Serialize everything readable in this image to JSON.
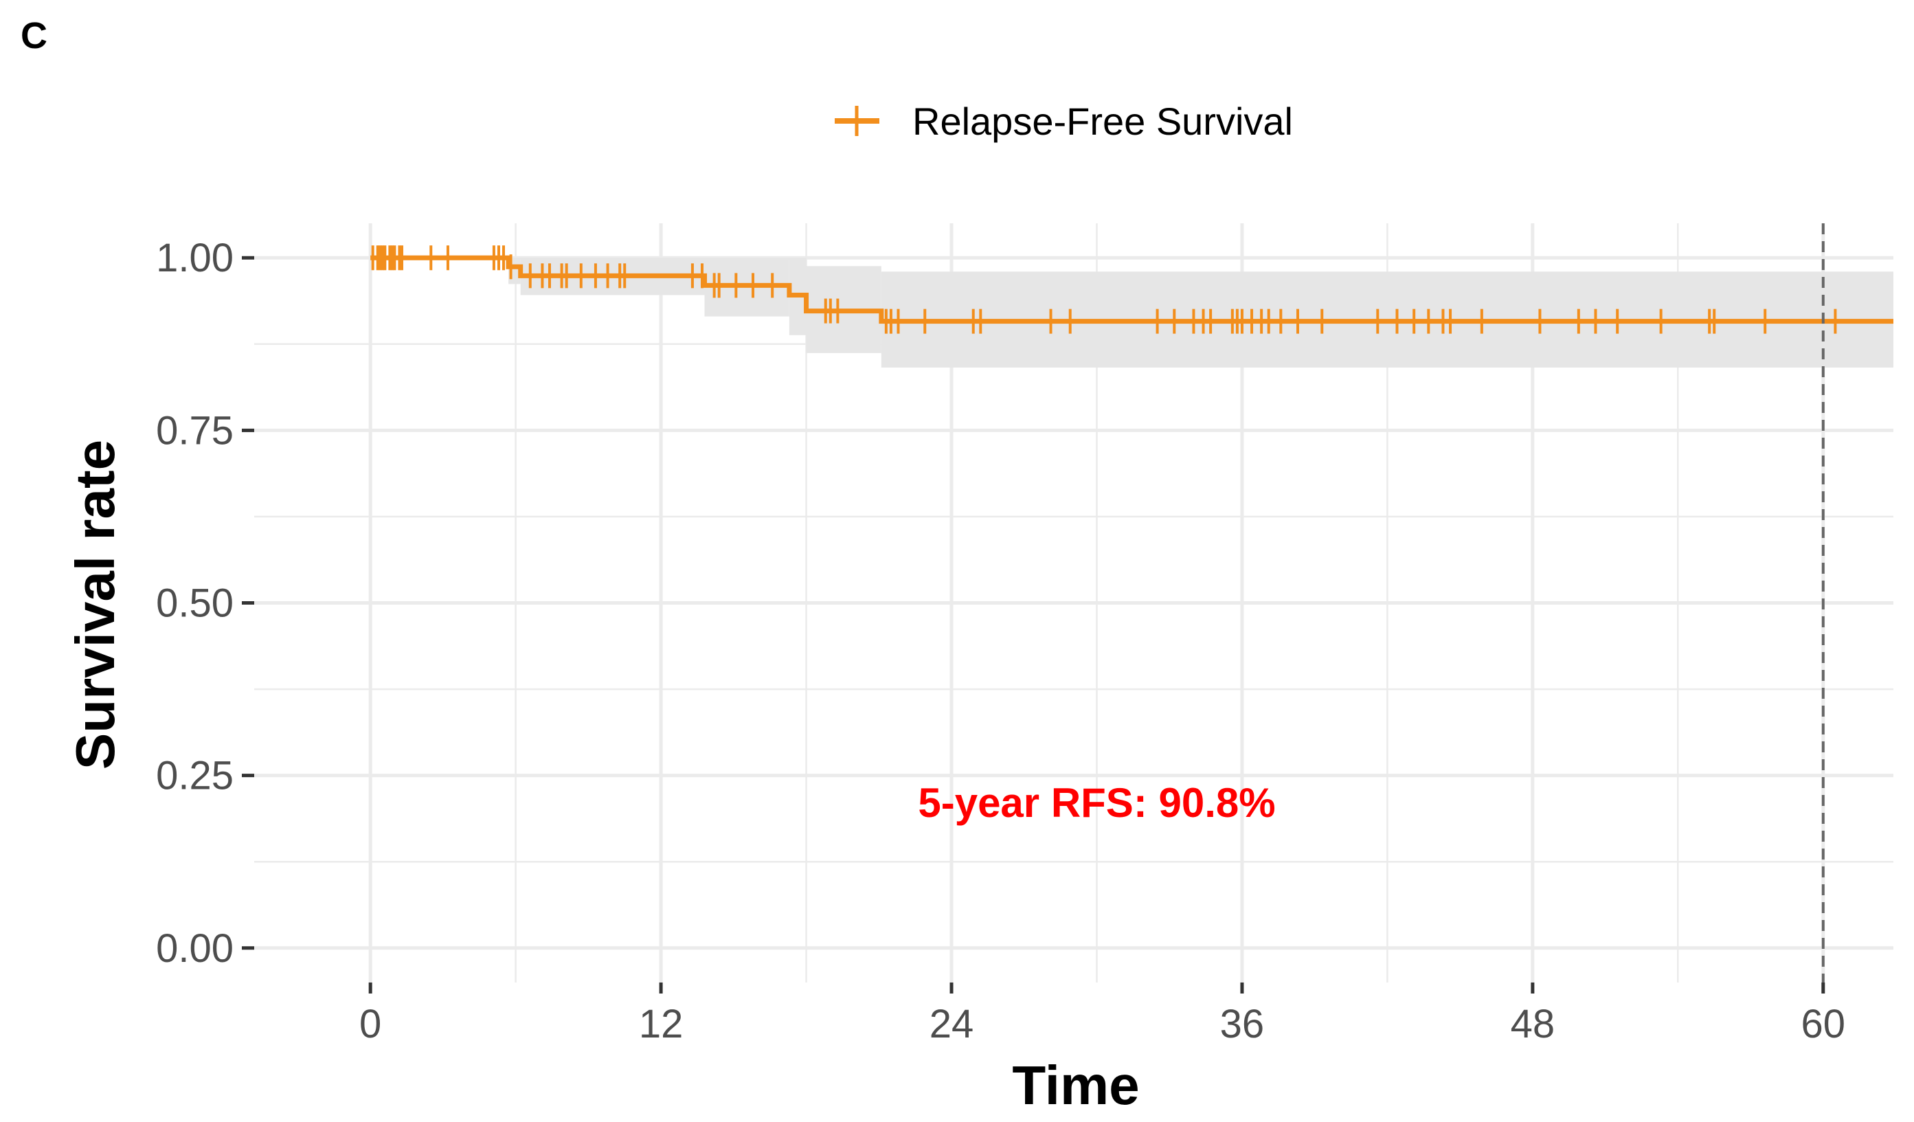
{
  "colors": {
    "series": "#F28E1C",
    "ci_band": "#E6E6E6",
    "grid": "#EBEBEB",
    "annotation": "#FF0000",
    "reference_line": "#666666"
  },
  "panel_label": "C",
  "chart_data": {
    "type": "line",
    "title": "",
    "xlabel": "Time",
    "ylabel": "Survival rate",
    "xlim": [
      -4.8,
      62.9
    ],
    "ylim": [
      -0.05,
      1.05
    ],
    "x_ticks": [
      0,
      12,
      24,
      36,
      48,
      60
    ],
    "x_tick_labels": [
      "0",
      "12",
      "24",
      "36",
      "48",
      "60"
    ],
    "y_ticks": [
      0,
      0.25,
      0.5,
      0.75,
      1.0
    ],
    "y_tick_labels": [
      "0.00",
      "0.25",
      "0.50",
      "0.75",
      "1.00"
    ],
    "grid": true,
    "legend": {
      "position": "top",
      "entries": [
        "Relapse-Free Survival"
      ]
    },
    "reference_line": {
      "x": 60,
      "style": "dashed"
    },
    "annotations": [
      {
        "text": "5-year RFS: 90.8%",
        "x": 30,
        "y": 0.19
      }
    ],
    "series": [
      {
        "name": "Relapse-Free Survival",
        "steps": [
          {
            "x": 0,
            "y": 1.0
          },
          {
            "x": 5.7,
            "y": 0.987
          },
          {
            "x": 6.2,
            "y": 0.974
          },
          {
            "x": 13.8,
            "y": 0.96
          },
          {
            "x": 17.3,
            "y": 0.946
          },
          {
            "x": 18.0,
            "y": 0.923
          },
          {
            "x": 21.1,
            "y": 0.908
          }
        ],
        "end_x": 62.9,
        "ci": [
          {
            "x": 0,
            "lower": 1.0,
            "upper": 1.0
          },
          {
            "x": 5.7,
            "lower": 0.962,
            "upper": 1.0
          },
          {
            "x": 6.2,
            "lower": 0.946,
            "upper": 1.0
          },
          {
            "x": 13.8,
            "lower": 0.915,
            "upper": 1.0
          },
          {
            "x": 17.3,
            "lower": 0.888,
            "upper": 1.0
          },
          {
            "x": 18.0,
            "lower": 0.862,
            "upper": 0.988
          },
          {
            "x": 21.1,
            "lower": 0.841,
            "upper": 0.98
          }
        ],
        "censor_times": [
          0.1,
          0.3,
          0.4,
          0.5,
          0.6,
          0.8,
          0.9,
          1.0,
          1.2,
          1.3,
          2.5,
          3.2,
          5.1,
          5.3,
          5.5,
          5.8,
          6.6,
          7.1,
          7.4,
          7.9,
          8.1,
          8.7,
          9.3,
          9.8,
          10.3,
          10.5,
          13.3,
          13.7,
          14.2,
          14.4,
          15.1,
          15.8,
          16.6,
          18.8,
          19.0,
          19.3,
          21.3,
          21.5,
          21.8,
          22.9,
          24.9,
          25.2,
          28.1,
          28.9,
          32.5,
          33.2,
          34.0,
          34.4,
          34.7,
          35.6,
          35.8,
          36.0,
          36.4,
          36.8,
          37.1,
          37.6,
          38.3,
          39.3,
          41.6,
          42.4,
          43.1,
          43.7,
          44.3,
          44.6,
          45.9,
          48.3,
          49.9,
          50.6,
          51.5,
          53.3,
          55.3,
          55.5,
          57.6,
          60.5
        ]
      }
    ]
  }
}
